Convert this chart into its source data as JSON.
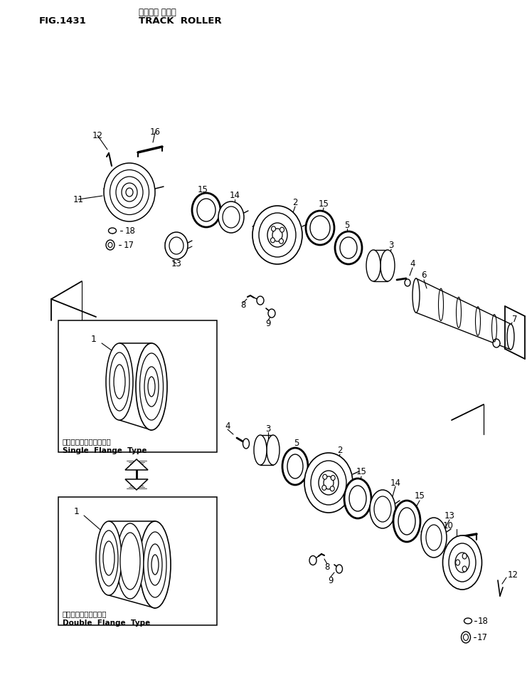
{
  "title_jp": "トラック ローラ",
  "title_fig": "FIG.1431",
  "title_en": "TRACK  ROLLER",
  "bg_color": "#ffffff",
  "line_color": "#000000",
  "text_color": "#000000",
  "single_flange_label_jp": "シングルフランジタイプ",
  "single_flange_label_en": "Single  Flange  Type",
  "double_flange_label_jp": "ダブルフランジタイプ",
  "double_flange_label_en": "Double  Flange  Type"
}
